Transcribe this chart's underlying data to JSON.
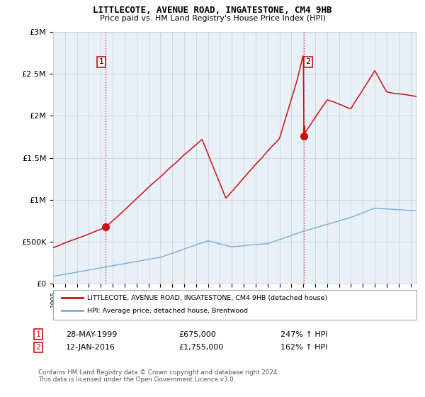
{
  "title": "LITTLECOTE, AVENUE ROAD, INGATESTONE, CM4 9HB",
  "subtitle": "Price paid vs. HM Land Registry's House Price Index (HPI)",
  "hpi_label": "HPI: Average price, detached house, Brentwood",
  "property_label": "LITTLECOTE, AVENUE ROAD, INGATESTONE, CM4 9HB (detached house)",
  "sale1_date": "28-MAY-1999",
  "sale1_price": "£675,000",
  "sale1_hpi": "247% ↑ HPI",
  "sale1_year": 1999.4,
  "sale1_value": 675000,
  "sale2_date": "12-JAN-2016",
  "sale2_price": "£1,755,000",
  "sale2_hpi": "162% ↑ HPI",
  "sale2_year": 2016.05,
  "sale2_value": 1755000,
  "footnote": "Contains HM Land Registry data © Crown copyright and database right 2024.\nThis data is licensed under the Open Government Licence v3.0.",
  "hpi_color": "#7aaed4",
  "property_color": "#cc1111",
  "background_color": "#ffffff",
  "plot_bg_color": "#e8f0f8",
  "grid_color": "#cccccc",
  "ylim": [
    0,
    3000000
  ],
  "yticks": [
    0,
    500000,
    1000000,
    1500000,
    2000000,
    2500000,
    3000000
  ],
  "ytick_labels": [
    "£0",
    "£500K",
    "£1M",
    "£1.5M",
    "£2M",
    "£2.5M",
    "£3M"
  ],
  "xmin": 1995,
  "xmax": 2025.5
}
